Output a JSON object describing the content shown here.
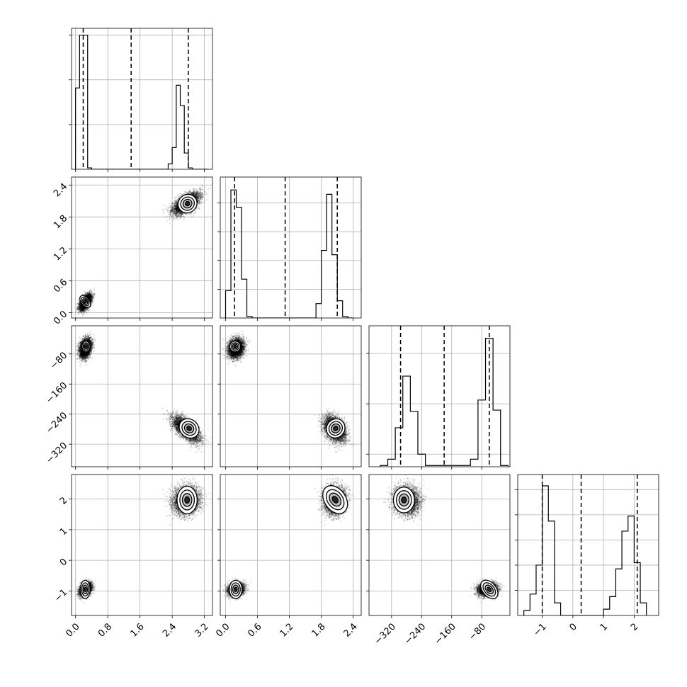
{
  "chart_data": {
    "type": "corner",
    "grid": true,
    "parameters": [
      {
        "range": [
          -0.1,
          3.4
        ],
        "ticks": [
          0.0,
          0.8,
          1.6,
          2.4,
          3.2
        ],
        "tick_labels": [
          "0.0",
          "0.8",
          "1.6",
          "2.4",
          "3.2"
        ],
        "quantiles": [
          0.19,
          1.38,
          2.8
        ],
        "hist": {
          "edges": [
            0.0,
            0.1,
            0.2,
            0.3,
            0.4,
            0.5,
            2.3,
            2.4,
            2.5,
            2.6,
            2.7,
            2.8,
            2.9,
            3.0,
            3.1,
            3.2,
            3.3
          ],
          "counts": [
            0.6,
            0.99,
            0.99,
            0.01,
            0,
            0,
            0.04,
            0.16,
            0.62,
            0.47,
            0.12,
            0.01,
            0,
            0,
            0,
            0
          ],
          "ymax": 1.04,
          "yticks": [
            0.33,
            0.66,
            0.99
          ]
        }
      },
      {
        "range": [
          -0.1,
          2.55
        ],
        "ticks": [
          0.0,
          0.6,
          1.2,
          1.8,
          2.4
        ],
        "tick_labels": [
          "0.0",
          "0.6",
          "1.2",
          "1.8",
          "2.4"
        ],
        "quantiles": [
          0.17,
          1.12,
          2.1
        ],
        "hist": {
          "edges": [
            0.0,
            0.1,
            0.2,
            0.3,
            0.4,
            0.5,
            1.7,
            1.8,
            1.9,
            2.0,
            2.1,
            2.2,
            2.3,
            2.4
          ],
          "counts": [
            0.19,
            0.89,
            0.77,
            0.27,
            0.01,
            0,
            0.1,
            0.47,
            0.86,
            0.44,
            0.12,
            0.01,
            0
          ],
          "ymax": 0.98,
          "yticks": [
            0.2,
            0.4,
            0.6,
            0.8
          ]
        }
      },
      {
        "range": [
          -380,
          -5
        ],
        "ticks": [
          -320,
          -240,
          -160,
          -80
        ],
        "tick_labels": [
          "−320",
          "−240",
          "−160",
          "−80"
        ],
        "quantiles": [
          -296,
          -180,
          -60
        ],
        "hist": {
          "edges": [
            -350,
            -330,
            -310,
            -290,
            -270,
            -250,
            -230,
            -110,
            -90,
            -70,
            -50,
            -30,
            -10
          ],
          "counts": [
            0.01,
            0.06,
            0.31,
            0.72,
            0.44,
            0.1,
            0.01,
            0.06,
            0.53,
            1.02,
            0.45,
            0.01
          ],
          "ymax": 1.12,
          "yticks": [
            0.1,
            0.5,
            0.9
          ]
        }
      },
      {
        "range": [
          -1.8,
          2.8
        ],
        "ticks": [
          -1,
          0,
          1,
          2
        ],
        "tick_labels": [
          "−1",
          "0",
          "1",
          "2"
        ],
        "quantiles": [
          -1.0,
          0.27,
          2.1
        ],
        "hist": {
          "edges": [
            -1.6,
            -1.4,
            -1.2,
            -1.0,
            -0.8,
            -0.6,
            -0.4,
            1.0,
            1.2,
            1.4,
            1.6,
            1.8,
            2.0,
            2.2,
            2.4
          ],
          "counts": [
            0.04,
            0.17,
            0.4,
            1.03,
            0.75,
            0.1,
            0,
            0.05,
            0.15,
            0.37,
            0.67,
            0.79,
            0.42,
            0.1
          ],
          "ymax": 1.12,
          "yticks": [
            0.2,
            0.4,
            0.6,
            0.8,
            1.0
          ]
        }
      }
    ],
    "modes": [
      {
        "center": [
          0.25,
          0.2,
          -64,
          -0.95
        ],
        "spread": [
          0.07,
          0.07,
          12,
          0.1
        ]
      },
      {
        "center": [
          2.75,
          2.05,
          -280,
          1.95
        ],
        "spread": [
          0.16,
          0.1,
          16,
          0.22
        ]
      }
    ],
    "contour_panels": [
      {
        "x": 0,
        "y": 1,
        "contours": [
          {
            "center": [
              0.24,
              0.21
            ],
            "semi_axes": [
              0.1,
              0.13
            ],
            "rotation_deg": 40
          },
          {
            "center": [
              2.78,
              2.05
            ],
            "semi_axes": [
              0.24,
              0.17
            ],
            "rotation_deg": 35
          }
        ]
      },
      {
        "x": 0,
        "y": 2,
        "contours": [
          {
            "center": [
              0.26,
              -60
            ],
            "semi_axes": [
              0.1,
              14
            ],
            "rotation_deg": 0
          },
          {
            "center": [
              2.82,
              -278
            ],
            "semi_axes": [
              0.26,
              24
            ],
            "rotation_deg": -40
          }
        ]
      },
      {
        "x": 1,
        "y": 2,
        "contours": [
          {
            "center": [
              0.18,
              -60
            ],
            "semi_axes": [
              0.1,
              14
            ],
            "rotation_deg": 0
          },
          {
            "center": [
              2.07,
              -278
            ],
            "semi_axes": [
              0.17,
              26
            ],
            "rotation_deg": -35
          }
        ]
      },
      {
        "x": 0,
        "y": 3,
        "contours": [
          {
            "center": [
              0.24,
              -0.95
            ],
            "semi_axes": [
              0.12,
              0.3
            ],
            "rotation_deg": 0
          },
          {
            "center": [
              2.77,
              1.97
            ],
            "semi_axes": [
              0.25,
              0.45
            ],
            "rotation_deg": 0
          }
        ]
      },
      {
        "x": 1,
        "y": 3,
        "contours": [
          {
            "center": [
              0.19,
              -0.95
            ],
            "semi_axes": [
              0.12,
              0.3
            ],
            "rotation_deg": 0
          },
          {
            "center": [
              2.06,
              1.98
            ],
            "semi_axes": [
              0.2,
              0.5
            ],
            "rotation_deg": 35
          }
        ]
      },
      {
        "x": 2,
        "y": 3,
        "contours": [
          {
            "center": [
              -287,
              1.97
            ],
            "semi_axes": [
              28,
              0.42
            ],
            "rotation_deg": 0
          },
          {
            "center": [
              -60,
              -0.95
            ],
            "semi_axes": [
              18,
              0.35
            ],
            "rotation_deg": 40
          }
        ]
      }
    ]
  }
}
